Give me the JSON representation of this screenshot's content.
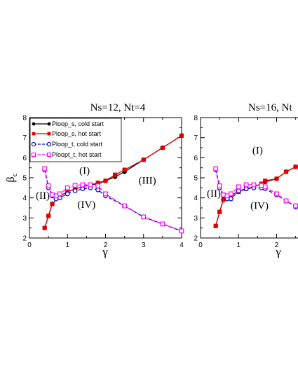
{
  "chart_data": [
    {
      "type": "line",
      "title": "Ns=12, Nt=4",
      "xlabel": "γ",
      "ylabel": "β",
      "ylabel_sub": "c",
      "xlim": [
        0,
        4
      ],
      "ylim": [
        2,
        8
      ],
      "xticks": [
        0,
        1,
        2,
        3,
        4
      ],
      "yticks": [
        2,
        3,
        4,
        5,
        6,
        7,
        8
      ],
      "grid": false,
      "legend_position": "top-left",
      "series": [
        {
          "name": "Ploop_s, cold start",
          "color": "#000000",
          "marker": "circle",
          "filled": true,
          "dashed": false,
          "x": [
            0.4,
            0.5,
            0.6,
            0.8,
            1.0,
            1.2,
            1.4,
            1.6,
            1.8,
            2.0,
            2.25,
            2.5,
            3.0,
            3.5,
            4.0
          ],
          "y": [
            2.5,
            3.1,
            3.7,
            4.1,
            4.3,
            4.45,
            4.55,
            4.65,
            4.7,
            4.85,
            5.05,
            5.3,
            5.9,
            6.5,
            7.1
          ]
        },
        {
          "name": "Ploop_s, hot start",
          "color": "#e00000",
          "marker": "square",
          "filled": true,
          "dashed": false,
          "x": [
            0.4,
            0.5,
            0.6,
            0.8,
            1.0,
            1.2,
            1.4,
            1.6,
            1.8,
            2.0,
            2.25,
            2.5,
            3.0,
            3.5,
            4.0
          ],
          "y": [
            2.5,
            3.1,
            3.7,
            4.1,
            4.3,
            4.45,
            4.55,
            4.65,
            4.75,
            4.85,
            5.15,
            5.4,
            5.9,
            6.5,
            7.1
          ]
        },
        {
          "name": "Ploop_t, cold start",
          "color": "#0000e0",
          "marker": "circle",
          "filled": false,
          "dashed": true,
          "x": [
            0.4,
            0.5,
            0.6,
            0.7,
            0.8,
            1.0,
            1.2,
            1.4,
            1.6,
            1.8,
            2.0,
            2.5,
            3.0,
            3.5,
            4.0
          ],
          "y": [
            5.4,
            4.5,
            4.1,
            3.95,
            4.0,
            4.2,
            4.35,
            4.45,
            4.5,
            4.4,
            4.1,
            3.6,
            3.05,
            2.7,
            2.35
          ]
        },
        {
          "name": "Ploopt_t, hot start",
          "color": "#ff00ff",
          "marker": "square",
          "filled": false,
          "dashed": true,
          "x": [
            0.4,
            0.5,
            0.6,
            0.7,
            0.8,
            1.0,
            1.2,
            1.4,
            1.6,
            1.8,
            2.0,
            2.5,
            3.0,
            3.5,
            4.0
          ],
          "y": [
            5.45,
            4.6,
            4.15,
            4.1,
            4.2,
            4.5,
            4.62,
            4.65,
            4.65,
            4.6,
            4.2,
            3.6,
            3.05,
            2.7,
            2.35
          ]
        }
      ],
      "annotations": [
        {
          "text": "(I)",
          "x": 1.45,
          "y": 5.2
        },
        {
          "text": "(II)",
          "x": 0.35,
          "y": 3.95
        },
        {
          "text": "(III)",
          "x": 3.1,
          "y": 4.7
        },
        {
          "text": "(IV)",
          "x": 1.5,
          "y": 3.5
        }
      ]
    },
    {
      "type": "line",
      "title": "Ns=16, Nt",
      "xlabel": "γ",
      "ylabel": "",
      "xlim": [
        0,
        4
      ],
      "ylim": [
        2,
        8
      ],
      "xticks": [
        0,
        1,
        2
      ],
      "yticks": [
        2,
        3,
        4,
        5,
        6,
        7,
        8
      ],
      "grid": false,
      "series": [
        {
          "color": "#000000",
          "marker": "circle",
          "filled": true,
          "dashed": false,
          "x": [
            0.4,
            0.5,
            0.6,
            0.8,
            1.0,
            1.2,
            1.4,
            1.6,
            1.7,
            2.0,
            2.25,
            2.5
          ],
          "y": [
            2.6,
            3.3,
            3.9,
            4.15,
            4.3,
            4.45,
            4.55,
            4.7,
            4.8,
            4.95,
            5.3,
            5.55
          ]
        },
        {
          "color": "#e00000",
          "marker": "square",
          "filled": true,
          "dashed": false,
          "x": [
            0.4,
            0.5,
            0.6,
            0.8,
            1.0,
            1.2,
            1.4,
            1.6,
            1.7,
            2.0,
            2.25,
            2.5
          ],
          "y": [
            2.6,
            3.3,
            3.9,
            4.15,
            4.3,
            4.45,
            4.55,
            4.7,
            4.85,
            4.95,
            5.3,
            5.55
          ]
        },
        {
          "color": "#0000e0",
          "marker": "circle",
          "filled": false,
          "dashed": true,
          "x": [
            0.4,
            0.5,
            0.6,
            0.7,
            0.8,
            1.0,
            1.2,
            1.4,
            1.6,
            1.7,
            2.0,
            2.25,
            2.5
          ],
          "y": [
            5.4,
            4.5,
            4.1,
            3.95,
            3.95,
            4.35,
            4.45,
            4.5,
            4.5,
            4.45,
            4.15,
            3.85,
            3.55
          ]
        },
        {
          "color": "#ff00ff",
          "marker": "square",
          "filled": false,
          "dashed": true,
          "x": [
            0.4,
            0.5,
            0.6,
            0.7,
            0.8,
            1.0,
            1.2,
            1.4,
            1.6,
            1.7,
            2.0,
            2.25,
            2.5
          ],
          "y": [
            5.45,
            4.6,
            4.15,
            4.1,
            4.2,
            4.55,
            4.65,
            4.65,
            4.62,
            4.55,
            4.2,
            3.85,
            3.6
          ]
        }
      ],
      "annotations": [
        {
          "text": "(I)",
          "x": 1.5,
          "y": 6.2
        },
        {
          "text": "(II)",
          "x": 0.35,
          "y": 4.05
        },
        {
          "text": "(IV)",
          "x": 1.55,
          "y": 3.45
        }
      ]
    }
  ]
}
